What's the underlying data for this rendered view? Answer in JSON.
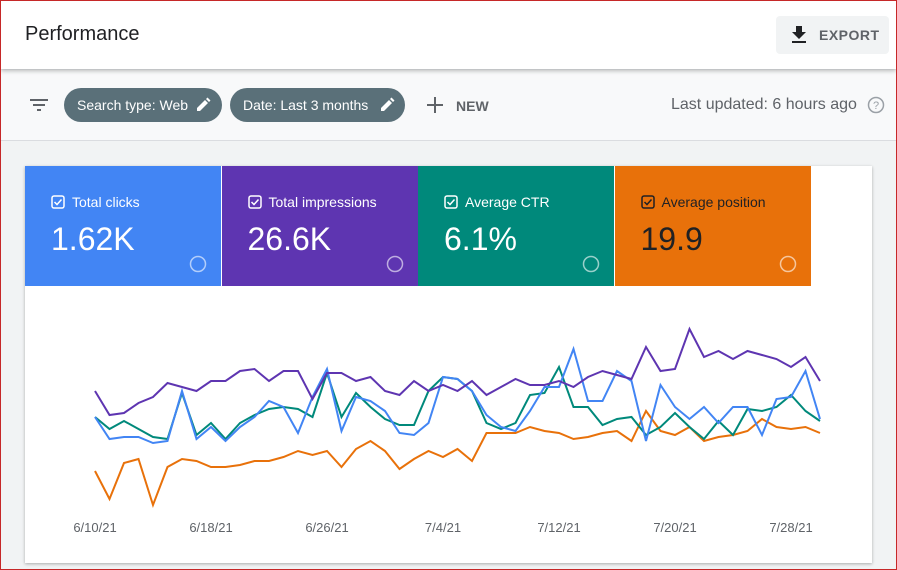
{
  "header": {
    "title": "Performance",
    "export": "EXPORT"
  },
  "filters": {
    "chips": [
      "Search type: Web",
      "Date: Last 3 months"
    ],
    "new": "NEW",
    "last_updated": "Last updated: 6 hours ago"
  },
  "chart_data": {
    "type": "line",
    "x": [
      "6/10/21",
      "6/11/21",
      "6/12/21",
      "6/13/21",
      "6/14/21",
      "6/15/21",
      "6/16/21",
      "6/17/21",
      "6/18/21",
      "6/19/21",
      "6/20/21",
      "6/21/21",
      "6/22/21",
      "6/23/21",
      "6/24/21",
      "6/25/21",
      "6/26/21",
      "6/27/21",
      "6/28/21",
      "6/29/21",
      "6/30/21",
      "7/1/21",
      "7/2/21",
      "7/3/21",
      "7/4/21",
      "7/5/21",
      "7/6/21",
      "7/7/21",
      "7/8/21",
      "7/9/21",
      "7/10/21",
      "7/11/21",
      "7/12/21",
      "7/13/21",
      "7/14/21",
      "7/15/21",
      "7/16/21",
      "7/17/21",
      "7/18/21",
      "7/19/21",
      "7/20/21",
      "7/21/21",
      "7/22/21",
      "7/23/21",
      "7/24/21",
      "7/25/21",
      "7/26/21",
      "7/27/21",
      "7/28/21",
      "7/29/21",
      "7/30/21"
    ],
    "xticks": [
      "6/10/21",
      "6/18/21",
      "6/26/21",
      "7/4/21",
      "7/12/21",
      "7/20/21",
      "7/28/21"
    ],
    "ylim": [
      0,
      100
    ],
    "series": [
      {
        "name": "Total clicks",
        "total": "1.62K",
        "color": "#4285f4",
        "values": [
          47,
          36,
          37,
          37,
          34,
          35,
          60,
          36,
          42,
          35,
          42,
          47,
          55,
          52,
          39,
          57,
          71,
          40,
          57,
          55,
          50,
          39,
          38,
          44,
          67,
          66,
          60,
          48,
          42,
          40,
          50,
          62,
          62,
          81,
          55,
          55,
          70,
          65,
          35,
          63,
          52,
          46,
          52,
          44,
          52,
          52,
          38,
          56,
          57,
          70,
          46
        ]
      },
      {
        "name": "Total impressions",
        "total": "26.6K",
        "color": "#5e35b1",
        "values": [
          60,
          48,
          49,
          54,
          57,
          64,
          62,
          60,
          65,
          65,
          70,
          71,
          65,
          70,
          70,
          56,
          69,
          69,
          65,
          67,
          60,
          58,
          65,
          60,
          63,
          60,
          65,
          58,
          62,
          66,
          63,
          63,
          65,
          62,
          67,
          70,
          68,
          66,
          82,
          70,
          71,
          91,
          77,
          80,
          76,
          80,
          78,
          76,
          72,
          77,
          65
        ]
      },
      {
        "name": "Average CTR",
        "total": "6.1%",
        "color": "#00897b",
        "values": [
          47,
          41,
          45,
          41,
          37,
          36,
          59,
          38,
          44,
          36,
          44,
          48,
          51,
          52,
          51,
          47,
          69,
          47,
          59,
          52,
          46,
          43,
          43,
          60,
          67,
          66,
          60,
          44,
          41,
          44,
          58,
          59,
          72,
          52,
          52,
          43,
          46,
          47,
          38,
          42,
          49,
          42,
          36,
          45,
          38,
          51,
          50,
          52,
          58,
          50,
          45
        ]
      },
      {
        "name": "Average position",
        "total": "19.9",
        "color": "#e8710a",
        "values": [
          20,
          6,
          24,
          26,
          3,
          22,
          26,
          25,
          22,
          22,
          23,
          25,
          25,
          27,
          30,
          28,
          30,
          22,
          31,
          35,
          30,
          21,
          26,
          30,
          27,
          31,
          25,
          39,
          39,
          39,
          42,
          40,
          39,
          36,
          37,
          39,
          40,
          35,
          50,
          40,
          38,
          42,
          35,
          37,
          38,
          40,
          46,
          42,
          41,
          42,
          39
        ]
      }
    ]
  }
}
